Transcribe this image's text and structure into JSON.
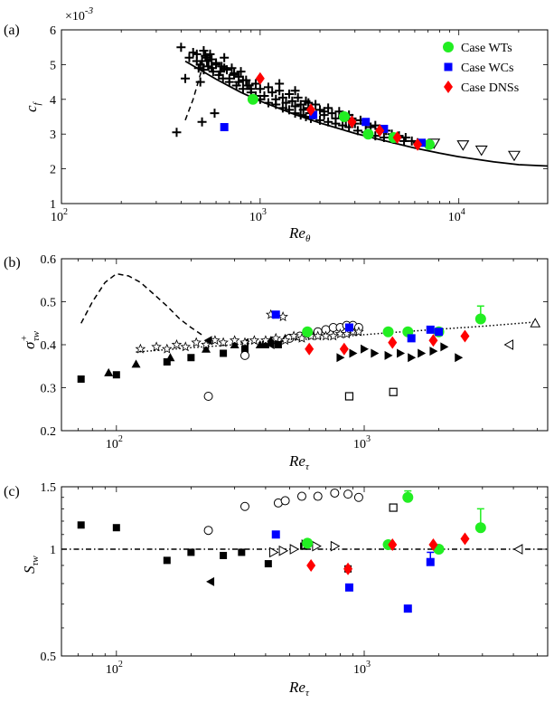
{
  "chart_data": [
    {
      "type": "scatter",
      "panel_label": "(a)",
      "xlabel": "Re",
      "xlabel_sub": "θ",
      "ylabel": "c",
      "ylabel_sub": "f",
      "y_multiplier": "×10",
      "y_multiplier_exp": "-3",
      "xscale": "log",
      "xlim": [
        100,
        28000
      ],
      "ylim": [
        1,
        6
      ],
      "xticks": [
        {
          "v": 100,
          "base": "10",
          "exp": "2"
        },
        {
          "v": 1000,
          "base": "10",
          "exp": "3"
        },
        {
          "v": 10000,
          "base": "10",
          "exp": "4"
        }
      ],
      "yticks": [
        1,
        2,
        3,
        4,
        5,
        6
      ],
      "legend": {
        "placement": "top-right",
        "entries": [
          {
            "label": "Case WTs",
            "color": "#22ee22",
            "marker": "circle"
          },
          {
            "label": "Case WCs",
            "color": "#0000ff",
            "marker": "square"
          },
          {
            "label": "Case DNSs",
            "color": "#ff0000",
            "marker": "diamond"
          }
        ]
      },
      "series": [
        {
          "name": "WTs",
          "marker": "circle",
          "color": "#22ee22",
          "x": [
            920,
            2650,
            3500,
            4700,
            7100
          ],
          "y": [
            4.0,
            3.5,
            3.0,
            2.9,
            2.7
          ]
        },
        {
          "name": "WCs",
          "marker": "square",
          "color": "#0000ff",
          "x": [
            660,
            1850,
            3400,
            4200,
            6500
          ],
          "y": [
            3.2,
            3.55,
            3.35,
            3.15,
            2.75
          ]
        },
        {
          "name": "DNSs",
          "marker": "diamond",
          "color": "#ff0000",
          "x": [
            1000,
            1800,
            2900,
            4000,
            4900,
            6200
          ],
          "y": [
            4.6,
            3.7,
            3.35,
            3.1,
            2.9,
            2.7
          ]
        },
        {
          "name": "triangles",
          "marker": "tri-down-open",
          "color": "#000000",
          "x": [
            7500,
            10500,
            13000,
            19000
          ],
          "y": [
            2.75,
            2.7,
            2.55,
            2.4
          ]
        },
        {
          "name": "crosses",
          "marker": "plus",
          "color": "#000000",
          "x": [
            380,
            400,
            420,
            440,
            460,
            480,
            490,
            500,
            510,
            520,
            530,
            540,
            550,
            560,
            570,
            580,
            590,
            600,
            620,
            640,
            650,
            660,
            680,
            700,
            720,
            740,
            760,
            780,
            800,
            820,
            850,
            880,
            900,
            950,
            1000,
            1050,
            1100,
            1150,
            1200,
            1250,
            1300,
            1350,
            1400,
            1450,
            1500,
            1550,
            1600,
            1650,
            1700,
            1750,
            1800,
            1900,
            2000,
            2100,
            2200,
            2300,
            2400,
            2500,
            2600,
            2700,
            2800,
            2900,
            3000,
            3200,
            3400,
            3600,
            3800,
            4000,
            4300,
            4600,
            5000,
            5400,
            5800,
            6200,
            510,
            540,
            570,
            600,
            630,
            660,
            700,
            740,
            780,
            820,
            860,
            900,
            950,
            1000,
            1100,
            1200,
            1300,
            1400,
            1500,
            1600,
            1700,
            1800,
            2000,
            2200,
            2400,
            2600,
            2800,
            3100,
            3400,
            3800,
            4200,
            4700,
            5300,
            480,
            520,
            1250,
            1500,
            1750,
            2100,
            500
          ],
          "y": [
            3.05,
            5.5,
            4.6,
            5.2,
            5.35,
            5.1,
            4.9,
            5.0,
            3.35,
            5.4,
            5.25,
            5.1,
            4.95,
            5.3,
            5.15,
            4.8,
            3.6,
            5.05,
            4.7,
            4.95,
            4.6,
            5.2,
            4.85,
            4.5,
            4.9,
            4.75,
            4.4,
            4.65,
            4.8,
            4.3,
            4.55,
            4.4,
            4.2,
            4.45,
            4.3,
            4.1,
            4.35,
            4.2,
            4.0,
            4.25,
            4.05,
            3.9,
            4.15,
            3.95,
            3.8,
            4.05,
            3.85,
            3.7,
            3.95,
            3.75,
            3.6,
            3.85,
            3.7,
            3.55,
            3.75,
            3.6,
            3.45,
            3.65,
            3.5,
            3.4,
            3.55,
            3.45,
            3.3,
            3.4,
            3.3,
            3.2,
            3.25,
            3.15,
            3.1,
            3.0,
            2.95,
            2.9,
            2.8,
            2.75,
            5.1,
            5.2,
            4.9,
            5.0,
            4.8,
            4.9,
            4.6,
            4.7,
            4.5,
            4.55,
            4.4,
            4.3,
            4.1,
            4.0,
            3.9,
            3.85,
            3.75,
            3.7,
            3.6,
            3.55,
            3.5,
            3.45,
            3.4,
            3.35,
            3.3,
            3.25,
            3.2,
            3.1,
            3.05,
            2.95,
            2.9,
            2.85,
            2.8,
            5.3,
            4.85,
            4.45,
            4.25,
            3.9,
            3.65,
            4.5
          ]
        },
        {
          "name": "solid-fit",
          "type": "line",
          "style": "solid",
          "color": "#000000",
          "x": [
            420,
            600,
            800,
            1000,
            1500,
            2000,
            3000,
            4000,
            6000,
            8000,
            10000,
            15000,
            20000,
            28000
          ],
          "y": [
            5.1,
            4.58,
            4.2,
            3.95,
            3.56,
            3.32,
            3.02,
            2.84,
            2.6,
            2.45,
            2.35,
            2.2,
            2.12,
            2.08
          ]
        },
        {
          "name": "dashed-fit",
          "type": "line",
          "style": "dashed",
          "color": "#000000",
          "x": [
            420,
            460,
            520
          ],
          "y": [
            3.4,
            4.0,
            5.05
          ]
        }
      ]
    },
    {
      "type": "scatter",
      "panel_label": "(b)",
      "xlabel": "Re",
      "xlabel_sub": "τ",
      "ylabel": "σ",
      "ylabel_sup": "+",
      "ylabel_sub": "τw",
      "xscale": "log",
      "xlim": [
        60,
        5500
      ],
      "ylim": [
        0.2,
        0.6
      ],
      "xticks": [
        {
          "v": 100,
          "base": "10",
          "exp": "2"
        },
        {
          "v": 1000,
          "base": "10",
          "exp": "3"
        }
      ],
      "yticks": [
        0.2,
        0.3,
        0.4,
        0.5,
        0.6
      ],
      "series": [
        {
          "name": "WTs",
          "marker": "circle",
          "color": "#22ee22",
          "x": [
            590,
            1250,
            1500,
            2000,
            2950
          ],
          "y": [
            0.43,
            0.43,
            0.43,
            0.43,
            0.46
          ],
          "err": [
            0,
            0,
            0,
            0,
            0.03
          ]
        },
        {
          "name": "WCs",
          "marker": "square",
          "color": "#0000ff",
          "x": [
            440,
            870,
            1550,
            1850,
            2000
          ],
          "y": [
            0.47,
            0.44,
            0.415,
            0.435,
            0.43
          ]
        },
        {
          "name": "DNSs",
          "marker": "diamond",
          "color": "#ff0000",
          "x": [
            600,
            830,
            1300,
            1900,
            2550
          ],
          "y": [
            0.39,
            0.39,
            0.405,
            0.41,
            0.42
          ]
        },
        {
          "name": "filled-squares",
          "marker": "square-black",
          "color": "#000000",
          "x": [
            72,
            100,
            160,
            200,
            270,
            330,
            400,
            450
          ],
          "y": [
            0.32,
            0.33,
            0.36,
            0.37,
            0.38,
            0.39,
            0.4,
            0.4
          ]
        },
        {
          "name": "filled-triangles-up",
          "marker": "tri-up-black",
          "color": "#000000",
          "x": [
            93,
            120,
            165,
            230,
            300,
            380,
            420,
            480
          ],
          "y": [
            0.335,
            0.355,
            0.37,
            0.39,
            0.4,
            0.4,
            0.41,
            0.415
          ]
        },
        {
          "name": "filled-triangles-left",
          "marker": "tri-left-black",
          "color": "#000000",
          "x": [
            235,
            330,
            420
          ],
          "y": [
            0.41,
            0.405,
            0.4
          ]
        },
        {
          "name": "filled-triangles-right",
          "marker": "tri-right-black",
          "color": "#000000",
          "x": [
            800,
            900,
            1000,
            1100,
            1250,
            1400,
            1550,
            1700,
            1900,
            2100,
            2400
          ],
          "y": [
            0.37,
            0.38,
            0.39,
            0.38,
            0.375,
            0.38,
            0.37,
            0.38,
            0.385,
            0.395,
            0.37
          ]
        },
        {
          "name": "open-circles",
          "marker": "circle-open",
          "color": "#000000",
          "x": [
            235,
            330,
            500,
            550,
            600,
            650,
            700,
            750,
            800,
            850,
            900,
            950
          ],
          "y": [
            0.28,
            0.375,
            0.415,
            0.42,
            0.425,
            0.43,
            0.435,
            0.44,
            0.44,
            0.445,
            0.445,
            0.44
          ]
        },
        {
          "name": "open-squares",
          "marker": "square-open",
          "color": "#000000",
          "x": [
            870,
            1310
          ],
          "y": [
            0.28,
            0.29
          ]
        },
        {
          "name": "open-stars",
          "marker": "star-open",
          "color": "#000000",
          "x": [
            125,
            145,
            160,
            175,
            190,
            210,
            230,
            250,
            270,
            300,
            330,
            360,
            400,
            440,
            480,
            520,
            560,
            610,
            650,
            700,
            750,
            800,
            850,
            900,
            950,
            420,
            470
          ],
          "y": [
            0.39,
            0.395,
            0.39,
            0.4,
            0.395,
            0.405,
            0.4,
            0.41,
            0.405,
            0.41,
            0.405,
            0.41,
            0.41,
            0.415,
            0.41,
            0.42,
            0.415,
            0.42,
            0.42,
            0.42,
            0.42,
            0.425,
            0.425,
            0.43,
            0.43,
            0.47,
            0.465
          ]
        },
        {
          "name": "open-triangles-left",
          "marker": "tri-left-open",
          "color": "#000000",
          "x": [
            3850
          ],
          "y": [
            0.4
          ]
        },
        {
          "name": "open-triangles-up",
          "marker": "tri-up-open",
          "color": "#000000",
          "x": [
            4900
          ],
          "y": [
            0.45
          ]
        },
        {
          "name": "dotted-fit",
          "type": "line",
          "style": "dotted",
          "color": "#000000",
          "x": [
            120,
            200,
            300,
            500,
            800,
            1200,
            2000,
            3000,
            5000
          ],
          "y": [
            0.383,
            0.393,
            0.4,
            0.41,
            0.419,
            0.427,
            0.436,
            0.443,
            0.453
          ]
        },
        {
          "name": "dashed-curve",
          "type": "line",
          "style": "dashed",
          "color": "#000000",
          "x": [
            72,
            80,
            90,
            100,
            112,
            125,
            140,
            160,
            180,
            200,
            225
          ],
          "y": [
            0.45,
            0.5,
            0.545,
            0.565,
            0.56,
            0.545,
            0.52,
            0.49,
            0.46,
            0.44,
            0.42
          ]
        }
      ]
    },
    {
      "type": "scatter",
      "panel_label": "(c)",
      "xlabel": "Re",
      "xlabel_sub": "τ",
      "ylabel": "S",
      "ylabel_sub": "τw",
      "xscale": "log",
      "yscale": "log",
      "xlim": [
        60,
        5500
      ],
      "ylim": [
        0.5,
        1.5
      ],
      "xticks": [
        {
          "v": 100,
          "base": "10",
          "exp": "2"
        },
        {
          "v": 1000,
          "base": "10",
          "exp": "3"
        }
      ],
      "yticks": [
        {
          "v": 0.5,
          "label": "0.5"
        },
        {
          "v": 1,
          "label": "1"
        },
        {
          "v": 1.5,
          "label": "1.5"
        }
      ],
      "series": [
        {
          "name": "WTs",
          "marker": "circle",
          "color": "#22ee22",
          "x": [
            590,
            1250,
            1500,
            2000,
            2950
          ],
          "y": [
            1.04,
            1.03,
            1.4,
            1.0,
            1.15
          ],
          "err": [
            0,
            0,
            0.06,
            0,
            0.15
          ]
        },
        {
          "name": "WCs",
          "marker": "square",
          "color": "#0000ff",
          "x": [
            440,
            870,
            1500,
            1850
          ],
          "y": [
            1.1,
            0.78,
            0.68,
            0.92
          ],
          "err": [
            0,
            0,
            0,
            0.06
          ]
        },
        {
          "name": "DNSs",
          "marker": "diamond",
          "color": "#ff0000",
          "x": [
            610,
            860,
            1300,
            1900,
            2550
          ],
          "y": [
            0.9,
            0.88,
            1.03,
            1.03,
            1.07
          ]
        },
        {
          "name": "filled-squares",
          "marker": "square-black",
          "color": "#000000",
          "x": [
            72,
            100,
            160,
            200,
            270,
            320,
            410,
            570,
            860
          ],
          "y": [
            1.17,
            1.15,
            0.93,
            0.98,
            0.96,
            0.98,
            0.91,
            1.02,
            0.88
          ]
        },
        {
          "name": "filled-triangles-left",
          "marker": "tri-left-black",
          "color": "#000000",
          "x": [
            240
          ],
          "y": [
            0.81
          ]
        },
        {
          "name": "open-circles",
          "marker": "circle-open",
          "color": "#000000",
          "x": [
            235,
            330,
            450,
            480,
            560,
            650,
            760,
            860,
            950
          ],
          "y": [
            1.13,
            1.32,
            1.35,
            1.37,
            1.41,
            1.41,
            1.44,
            1.43,
            1.4
          ]
        },
        {
          "name": "open-triangles-right",
          "marker": "tri-right-open",
          "color": "#000000",
          "x": [
            430,
            470,
            520,
            580,
            640,
            760
          ],
          "y": [
            0.98,
            0.99,
            1.0,
            1.03,
            1.02,
            1.02
          ]
        },
        {
          "name": "open-squares",
          "marker": "square-open",
          "color": "#000000",
          "x": [
            1310
          ],
          "y": [
            1.31
          ]
        },
        {
          "name": "open-triangles-left",
          "marker": "tri-left-open",
          "color": "#000000",
          "x": [
            4200
          ],
          "y": [
            1.0
          ]
        },
        {
          "name": "reference",
          "type": "line",
          "style": "dashdot",
          "color": "#000000",
          "x": [
            60,
            5500
          ],
          "y": [
            1.0,
            1.0
          ]
        }
      ]
    }
  ]
}
